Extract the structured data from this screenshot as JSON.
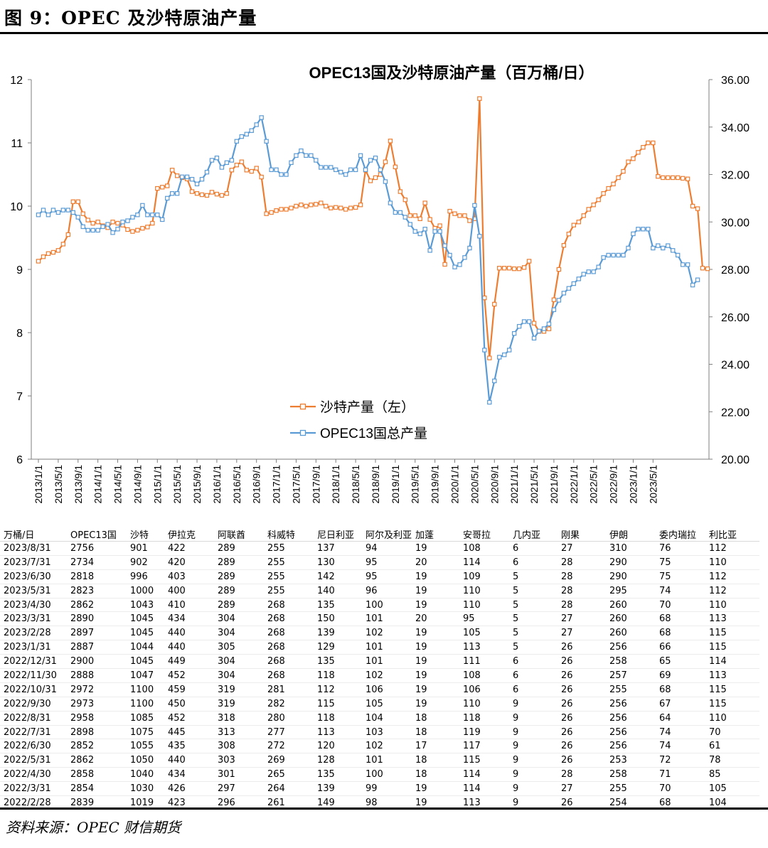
{
  "figure": {
    "title": "图 9：OPEC 及沙特原油产量",
    "source": "资料来源：OPEC 财信期货"
  },
  "colors": {
    "saudi": "#ED7D31",
    "opec": "#5B9BD5",
    "axis": "#7f7f7f"
  },
  "chart_data": {
    "type": "line",
    "title": "OPEC13国及沙特原油产量（百万桶/日）",
    "ylim_left": [
      6,
      12
    ],
    "ylim_right": [
      20,
      36
    ],
    "yticks_left": [
      "6",
      "7",
      "8",
      "9",
      "10",
      "11",
      "12"
    ],
    "yticks_right": [
      "20.00",
      "22.00",
      "24.00",
      "26.00",
      "28.00",
      "30.00",
      "32.00",
      "34.00",
      "36.00"
    ],
    "xticks": [
      "2013/1/1",
      "2013/5/1",
      "2013/9/1",
      "2014/1/1",
      "2014/5/1",
      "2014/9/1",
      "2015/1/1",
      "2015/5/1",
      "2015/9/1",
      "2016/1/1",
      "2016/5/1",
      "2016/9/1",
      "2017/1/1",
      "2017/5/1",
      "2017/9/1",
      "2018/1/1",
      "2018/5/1",
      "2018/9/1",
      "2019/1/1",
      "2019/5/1",
      "2019/9/1",
      "2020/1/1",
      "2020/5/1",
      "2020/9/1",
      "2021/1/1",
      "2021/5/1",
      "2021/9/1",
      "2022/1/1",
      "2022/5/1",
      "2022/9/1",
      "2023/1/1",
      "2023/5/1"
    ],
    "x_start": "2013/1",
    "x_end": "2023/8",
    "legend": "center-left",
    "grid": false,
    "series": [
      {
        "name": "沙特产量（左）",
        "axis": "left",
        "values": [
          9.13,
          9.2,
          9.25,
          9.27,
          9.3,
          9.4,
          9.55,
          10.07,
          10.07,
          9.88,
          9.78,
          9.73,
          9.75,
          9.69,
          9.66,
          9.75,
          9.73,
          9.7,
          9.63,
          9.6,
          9.62,
          9.65,
          9.67,
          9.73,
          10.28,
          10.3,
          10.32,
          10.57,
          10.48,
          10.45,
          10.43,
          10.23,
          10.2,
          10.18,
          10.17,
          10.22,
          10.19,
          10.17,
          10.2,
          10.57,
          10.65,
          10.7,
          10.57,
          10.55,
          10.6,
          10.46,
          9.88,
          9.9,
          9.93,
          9.95,
          9.95,
          9.97,
          10.0,
          10.02,
          10.0,
          10.02,
          10.03,
          10.05,
          10.0,
          9.97,
          9.98,
          9.97,
          9.95,
          9.97,
          9.98,
          10.02,
          10.57,
          10.4,
          10.45,
          10.5,
          10.7,
          11.03,
          10.62,
          10.23,
          10.1,
          9.85,
          9.85,
          9.8,
          10.05,
          9.79,
          9.65,
          9.69,
          9.08,
          9.92,
          9.88,
          9.85,
          9.85,
          9.77,
          9.8,
          11.7,
          8.55,
          7.6,
          8.45,
          9.02,
          9.02,
          9.02,
          9.01,
          9.01,
          9.03,
          9.13,
          8.15,
          8.02,
          8.02,
          8.06,
          8.52,
          9.0,
          9.38,
          9.56,
          9.7,
          9.75,
          9.85,
          9.95,
          10.02,
          10.1,
          10.2,
          10.28,
          10.35,
          10.45,
          10.55,
          10.7,
          10.75,
          10.85,
          10.93,
          11.0,
          11.0,
          10.47,
          10.45,
          10.45,
          10.45,
          10.45,
          10.44,
          10.43,
          10.0,
          9.96,
          9.02,
          9.01
        ]
      },
      {
        "name": "OPEC13国总产量",
        "axis": "right",
        "values": [
          30.3,
          30.5,
          30.3,
          30.5,
          30.4,
          30.5,
          30.5,
          30.4,
          30.2,
          29.8,
          29.65,
          29.65,
          29.65,
          29.8,
          29.9,
          29.55,
          29.7,
          30.0,
          30.05,
          30.2,
          30.3,
          30.7,
          30.3,
          30.3,
          30.3,
          30.1,
          31.0,
          31.2,
          31.2,
          31.9,
          31.9,
          31.8,
          31.6,
          31.8,
          32.1,
          32.6,
          32.7,
          32.3,
          32.5,
          32.6,
          33.4,
          33.6,
          33.7,
          33.85,
          34.1,
          34.4,
          33.4,
          32.2,
          32.2,
          32.0,
          32.0,
          32.5,
          32.8,
          33.0,
          32.8,
          32.8,
          32.6,
          32.3,
          32.3,
          32.3,
          32.2,
          32.1,
          32.0,
          32.2,
          32.2,
          32.8,
          32.2,
          32.6,
          32.7,
          32.2,
          31.7,
          30.8,
          30.4,
          30.4,
          30.2,
          29.9,
          29.6,
          29.5,
          29.7,
          28.8,
          29.6,
          29.6,
          29.0,
          28.6,
          28.1,
          28.2,
          28.5,
          28.9,
          30.7,
          29.4,
          24.6,
          22.4,
          23.3,
          24.3,
          24.4,
          24.6,
          25.3,
          25.6,
          25.8,
          25.8,
          25.1,
          25.4,
          25.5,
          25.7,
          26.3,
          26.7,
          27.0,
          27.2,
          27.4,
          27.6,
          27.8,
          27.9,
          27.9,
          28.1,
          28.5,
          28.6,
          28.6,
          28.6,
          28.6,
          28.9,
          29.5,
          29.7,
          29.7,
          29.7,
          28.9,
          29.0,
          28.9,
          29.0,
          28.8,
          28.6,
          28.2,
          28.2,
          27.34,
          27.56
        ]
      }
    ]
  },
  "table": {
    "headers": [
      "万桶/日",
      "OPEC13国",
      "沙特",
      "伊拉克",
      "阿联酋",
      "科威特",
      "尼日利亚",
      "阿尔及利亚",
      "加蓬",
      "安哥拉",
      "几内亚",
      "刚果",
      "伊朗",
      "委内瑞拉",
      "利比亚"
    ],
    "rows": [
      [
        "2023/8/31",
        "2756",
        "901",
        "422",
        "289",
        "255",
        "137",
        "94",
        "19",
        "108",
        "6",
        "27",
        "310",
        "76",
        "112"
      ],
      [
        "2023/7/31",
        "2734",
        "902",
        "420",
        "289",
        "255",
        "130",
        "95",
        "20",
        "114",
        "6",
        "28",
        "290",
        "75",
        "110"
      ],
      [
        "2023/6/30",
        "2818",
        "996",
        "403",
        "289",
        "255",
        "142",
        "95",
        "19",
        "109",
        "5",
        "28",
        "290",
        "75",
        "112"
      ],
      [
        "2023/5/31",
        "2823",
        "1000",
        "400",
        "289",
        "255",
        "140",
        "96",
        "19",
        "110",
        "5",
        "28",
        "295",
        "74",
        "112"
      ],
      [
        "2023/4/30",
        "2862",
        "1043",
        "410",
        "289",
        "268",
        "135",
        "100",
        "19",
        "110",
        "5",
        "28",
        "260",
        "70",
        "110"
      ],
      [
        "2023/3/31",
        "2890",
        "1045",
        "434",
        "304",
        "268",
        "150",
        "101",
        "20",
        "95",
        "5",
        "27",
        "260",
        "68",
        "113"
      ],
      [
        "2023/2/28",
        "2897",
        "1045",
        "440",
        "304",
        "268",
        "139",
        "102",
        "19",
        "105",
        "5",
        "27",
        "260",
        "68",
        "115"
      ],
      [
        "2023/1/31",
        "2887",
        "1044",
        "440",
        "305",
        "268",
        "129",
        "101",
        "19",
        "113",
        "5",
        "26",
        "256",
        "66",
        "115"
      ],
      [
        "2022/12/31",
        "2900",
        "1045",
        "449",
        "304",
        "268",
        "135",
        "101",
        "19",
        "111",
        "6",
        "26",
        "258",
        "65",
        "114"
      ],
      [
        "2022/11/30",
        "2888",
        "1047",
        "452",
        "304",
        "268",
        "118",
        "102",
        "19",
        "108",
        "6",
        "26",
        "257",
        "69",
        "113"
      ],
      [
        "2022/10/31",
        "2972",
        "1100",
        "459",
        "319",
        "281",
        "112",
        "106",
        "19",
        "106",
        "6",
        "26",
        "255",
        "68",
        "115"
      ],
      [
        "2022/9/30",
        "2973",
        "1100",
        "450",
        "319",
        "282",
        "115",
        "105",
        "19",
        "110",
        "9",
        "26",
        "256",
        "67",
        "115"
      ],
      [
        "2022/8/31",
        "2958",
        "1085",
        "452",
        "318",
        "280",
        "118",
        "104",
        "18",
        "118",
        "9",
        "26",
        "256",
        "64",
        "110"
      ],
      [
        "2022/7/31",
        "2898",
        "1075",
        "445",
        "313",
        "277",
        "113",
        "103",
        "18",
        "119",
        "9",
        "26",
        "256",
        "74",
        "70"
      ],
      [
        "2022/6/30",
        "2852",
        "1055",
        "435",
        "308",
        "272",
        "120",
        "102",
        "17",
        "117",
        "9",
        "26",
        "256",
        "74",
        "61"
      ],
      [
        "2022/5/31",
        "2862",
        "1050",
        "440",
        "303",
        "269",
        "128",
        "101",
        "18",
        "115",
        "9",
        "26",
        "253",
        "72",
        "78"
      ],
      [
        "2022/4/30",
        "2858",
        "1040",
        "434",
        "301",
        "265",
        "135",
        "100",
        "18",
        "114",
        "9",
        "28",
        "258",
        "71",
        "85"
      ],
      [
        "2022/3/31",
        "2854",
        "1030",
        "426",
        "297",
        "264",
        "139",
        "99",
        "19",
        "114",
        "9",
        "27",
        "255",
        "70",
        "105"
      ],
      [
        "2022/2/28",
        "2839",
        "1019",
        "423",
        "296",
        "261",
        "149",
        "98",
        "19",
        "113",
        "9",
        "26",
        "254",
        "68",
        "104"
      ]
    ]
  }
}
